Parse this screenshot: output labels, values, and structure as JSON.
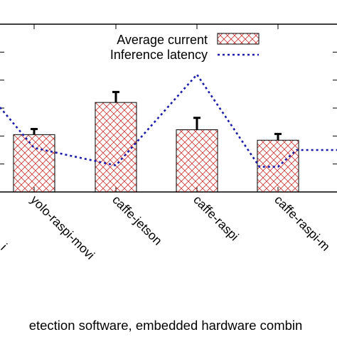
{
  "chart_data": {
    "type": "bar",
    "categories": [
      "yolo-raspi-movi",
      "caffe-jetson",
      "caffe-raspi",
      "caffe-raspi-movi"
    ],
    "left_partial_category": "i",
    "right_partial_category_label": "caffe-raspi-m",
    "xlabel": "etection software, embedded hardware combin",
    "series": [
      {
        "name": "Average current",
        "kind": "bar",
        "pattern": "crosshatch",
        "color": "#cc3333",
        "values": [
          0.82,
          1.28,
          0.89,
          0.74
        ],
        "errors": [
          0.08,
          0.15,
          0.17,
          0.09
        ]
      },
      {
        "name": "Inference latency",
        "kind": "line",
        "style": "dotted",
        "color": "#1a1aaa",
        "left_edge_value": 1.21,
        "values": [
          0.63,
          1.68,
          0.36,
          0.64
        ],
        "dip_values": [
          0.38,
          0.36
        ],
        "right_edge_value": 0.6
      }
    ],
    "ylim": [
      0,
      2.4
    ],
    "grid": false,
    "legend": "top-center"
  }
}
